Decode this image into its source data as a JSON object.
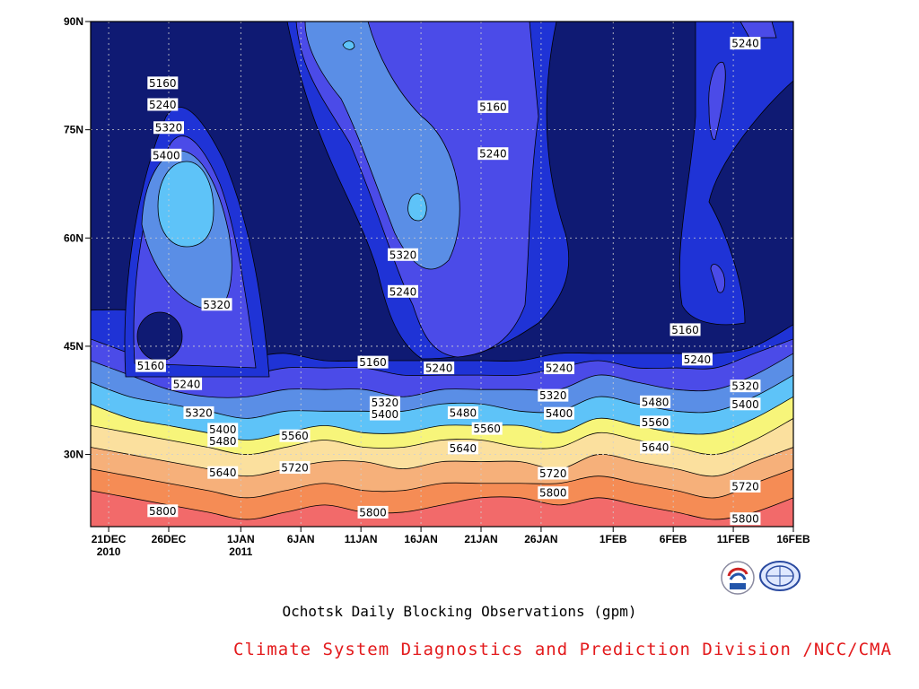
{
  "chart_data": {
    "type": "heatmap",
    "title": "Ochotsk Daily Blocking Observations (gpm)",
    "credit": "Climate System Diagnostics and Prediction Division /NCC/CMA",
    "credit_color": "#e31a1c",
    "x_ticks": [
      {
        "day": 0,
        "line1": "21DEC",
        "line2": "2010"
      },
      {
        "day": 5,
        "line1": "26DEC",
        "line2": ""
      },
      {
        "day": 11,
        "line1": "1JAN",
        "line2": "2011"
      },
      {
        "day": 16,
        "line1": "6JAN",
        "line2": ""
      },
      {
        "day": 21,
        "line1": "11JAN",
        "line2": ""
      },
      {
        "day": 26,
        "line1": "16JAN",
        "line2": ""
      },
      {
        "day": 31,
        "line1": "21JAN",
        "line2": ""
      },
      {
        "day": 36,
        "line1": "26JAN",
        "line2": ""
      },
      {
        "day": 42,
        "line1": "1FEB",
        "line2": ""
      },
      {
        "day": 47,
        "line1": "6FEB",
        "line2": ""
      },
      {
        "day": 52,
        "line1": "11FEB",
        "line2": ""
      },
      {
        "day": 57,
        "line1": "16FEB",
        "line2": ""
      }
    ],
    "y_ticks": [
      {
        "lat": 90,
        "label": "90N"
      },
      {
        "lat": 75,
        "label": "75N"
      },
      {
        "lat": 60,
        "label": "60N"
      },
      {
        "lat": 45,
        "label": "45N"
      },
      {
        "lat": 30,
        "label": "30N"
      }
    ],
    "xlim": [
      -1.5,
      57
    ],
    "ylim": [
      20,
      90
    ],
    "grid": true,
    "contour_levels": [
      5160,
      5240,
      5320,
      5400,
      5480,
      5560,
      5640,
      5720,
      5800
    ],
    "fill_colors": [
      "#0f1a73",
      "#1f33d6",
      "#4b4be8",
      "#5a8ee6",
      "#5ec3f8",
      "#f7f57a",
      "#fbe09e",
      "#f6b07a",
      "#f58c55",
      "#f26a6a"
    ],
    "bands": [
      {
        "level": 5160,
        "lats": [
          50,
          50,
          49,
          48,
          44,
          44,
          43,
          43,
          43,
          43,
          43,
          43,
          44,
          44,
          44,
          44,
          44,
          45,
          48
        ]
      },
      {
        "level": 5240,
        "lats": [
          46,
          44,
          42,
          41,
          41,
          42,
          42,
          42,
          41,
          41,
          41,
          41,
          42,
          43,
          42,
          42,
          42,
          44,
          46
        ]
      },
      {
        "level": 5320,
        "lats": [
          43,
          41,
          39,
          38,
          38,
          39,
          39,
          39,
          38,
          39,
          39,
          39,
          39,
          41,
          40,
          39,
          39,
          41,
          44
        ]
      },
      {
        "level": 5400,
        "lats": [
          40,
          38,
          37,
          36,
          35,
          36,
          36,
          36,
          36,
          37,
          37,
          36,
          36,
          38,
          37,
          36,
          36,
          38,
          41
        ]
      },
      {
        "level": 5480,
        "lats": [
          37,
          35,
          34,
          33,
          32,
          33,
          34,
          33,
          33,
          34,
          34,
          34,
          33,
          35,
          34,
          33,
          33,
          35,
          38
        ]
      },
      {
        "level": 5560,
        "lats": [
          34,
          33,
          32,
          31,
          30,
          31,
          32,
          31,
          31,
          32,
          32,
          31,
          31,
          33,
          32,
          31,
          30,
          32,
          35
        ]
      },
      {
        "level": 5640,
        "lats": [
          31,
          30,
          29,
          28,
          27,
          28,
          29,
          29,
          28,
          29,
          29,
          29,
          28,
          30,
          29,
          28,
          27,
          29,
          31
        ]
      },
      {
        "level": 5720,
        "lats": [
          28,
          27,
          26,
          25,
          24,
          25,
          26,
          25,
          25,
          26,
          26,
          26,
          26,
          27,
          26,
          25,
          24,
          26,
          28
        ]
      },
      {
        "level": 5800,
        "lats": [
          25,
          24,
          23,
          22,
          21,
          22,
          23,
          22,
          22,
          23,
          24,
          24,
          23,
          24,
          23,
          22,
          21,
          22,
          24
        ]
      }
    ],
    "contour_labels": [
      {
        "text": "5160",
        "day": 4.5,
        "lat": 81.5
      },
      {
        "text": "5240",
        "day": 4.5,
        "lat": 78.5
      },
      {
        "text": "5320",
        "day": 5.0,
        "lat": 75.3
      },
      {
        "text": "5400",
        "day": 4.8,
        "lat": 71.5
      },
      {
        "text": "5320",
        "day": 9.0,
        "lat": 50.8
      },
      {
        "text": "5160",
        "day": 3.5,
        "lat": 42.3
      },
      {
        "text": "5240",
        "day": 6.5,
        "lat": 39.8
      },
      {
        "text": "5320",
        "day": 7.5,
        "lat": 35.8
      },
      {
        "text": "5400",
        "day": 9.5,
        "lat": 33.5
      },
      {
        "text": "5480",
        "day": 9.5,
        "lat": 31.9
      },
      {
        "text": "5640",
        "day": 9.5,
        "lat": 27.5
      },
      {
        "text": "5800",
        "day": 4.5,
        "lat": 22.2
      },
      {
        "text": "5560",
        "day": 15.5,
        "lat": 32.6
      },
      {
        "text": "5720",
        "day": 15.5,
        "lat": 28.2
      },
      {
        "text": "5160",
        "day": 22.0,
        "lat": 42.8
      },
      {
        "text": "5320",
        "day": 23.0,
        "lat": 37.2
      },
      {
        "text": "5400",
        "day": 23.0,
        "lat": 35.6
      },
      {
        "text": "5800",
        "day": 22.0,
        "lat": 22.0
      },
      {
        "text": "5320",
        "day": 24.5,
        "lat": 57.7
      },
      {
        "text": "5240",
        "day": 24.5,
        "lat": 52.6
      },
      {
        "text": "5240",
        "day": 27.5,
        "lat": 42.0
      },
      {
        "text": "5160",
        "day": 32.0,
        "lat": 78.2
      },
      {
        "text": "5240",
        "day": 32.0,
        "lat": 71.7
      },
      {
        "text": "5480",
        "day": 29.5,
        "lat": 35.8
      },
      {
        "text": "5560",
        "day": 31.5,
        "lat": 33.6
      },
      {
        "text": "5640",
        "day": 29.5,
        "lat": 30.9
      },
      {
        "text": "5240",
        "day": 37.5,
        "lat": 42.0
      },
      {
        "text": "5320",
        "day": 37.0,
        "lat": 38.2
      },
      {
        "text": "5400",
        "day": 37.5,
        "lat": 35.7
      },
      {
        "text": "5720",
        "day": 37.0,
        "lat": 27.4
      },
      {
        "text": "5800",
        "day": 37.0,
        "lat": 24.7
      },
      {
        "text": "5160",
        "day": 48.0,
        "lat": 47.3
      },
      {
        "text": "5240",
        "day": 49.0,
        "lat": 43.2
      },
      {
        "text": "5480",
        "day": 45.5,
        "lat": 37.3
      },
      {
        "text": "5560",
        "day": 45.5,
        "lat": 34.5
      },
      {
        "text": "5640",
        "day": 45.5,
        "lat": 31.0
      },
      {
        "text": "5320",
        "day": 53.0,
        "lat": 39.5
      },
      {
        "text": "5400",
        "day": 53.0,
        "lat": 37.0
      },
      {
        "text": "5720",
        "day": 53.0,
        "lat": 25.6
      },
      {
        "text": "5800",
        "day": 53.0,
        "lat": 21.1
      },
      {
        "text": "5240",
        "day": 53.0,
        "lat": 87.0
      }
    ]
  }
}
